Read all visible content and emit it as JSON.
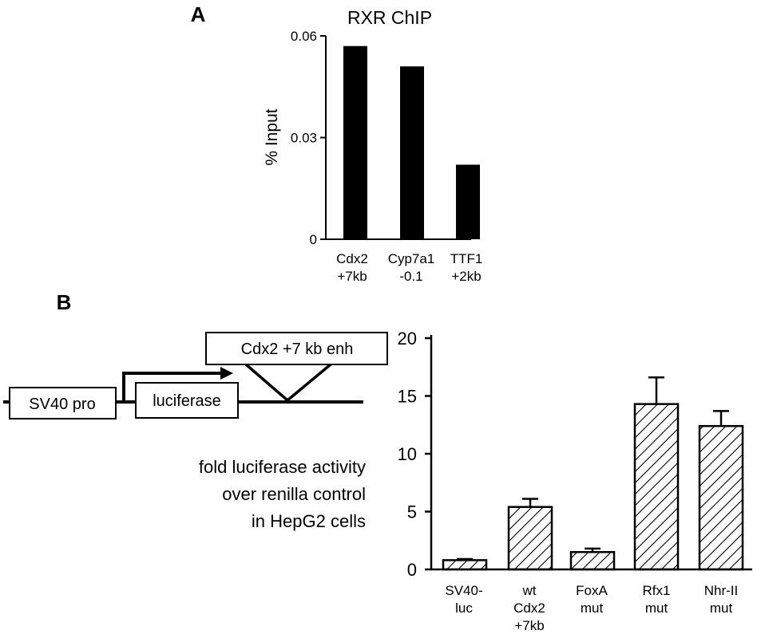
{
  "panel_a": {
    "letter": "A",
    "title": "RXR ChIP",
    "ylabel": "% Input",
    "y_ticks": [
      "0",
      "0.03",
      "0.06"
    ],
    "x_labels": [
      [
        "Cdx2",
        "+7kb"
      ],
      [
        "Cyp7a1",
        "-0.1"
      ],
      [
        "TTF1",
        "+2kb"
      ]
    ]
  },
  "panel_b": {
    "letter": "B",
    "diagram": {
      "promoter": "SV40 pro",
      "reporter": "luciferase",
      "enhancer": "Cdx2 +7 kb enh"
    },
    "caption": [
      "fold luciferase activity",
      "over renilla control",
      "in HepG2 cells"
    ],
    "y_ticks": [
      "0",
      "5",
      "10",
      "15",
      "20"
    ],
    "x_labels": [
      [
        "SV40-",
        "luc"
      ],
      [
        "wt",
        "Cdx2",
        "+7kb"
      ],
      [
        "FoxA",
        "mut"
      ],
      [
        "Rfx1",
        "mut"
      ],
      [
        "Nhr-II",
        "mut"
      ]
    ]
  },
  "chart_data": [
    {
      "type": "bar",
      "title": "RXR ChIP",
      "xlabel": "",
      "ylabel": "% Input",
      "categories": [
        "Cdx2 +7kb",
        "Cyp7a1 -0.1",
        "TTF1 +2kb"
      ],
      "values": [
        0.057,
        0.051,
        0.022
      ],
      "ylim": [
        0,
        0.06
      ],
      "bar_color": "#000000",
      "grid": false
    },
    {
      "type": "bar",
      "title": "",
      "xlabel": "",
      "ylabel": "",
      "categories": [
        "SV40-luc",
        "wt Cdx2 +7kb",
        "FoxA mut",
        "Rfx1 mut",
        "Nhr-II mut"
      ],
      "values": [
        0.8,
        5.4,
        1.5,
        14.3,
        12.4
      ],
      "errors": [
        0.1,
        0.7,
        0.3,
        2.3,
        1.3
      ],
      "ylim": [
        0,
        20
      ],
      "bar_fill": "hatched",
      "grid": false
    }
  ]
}
